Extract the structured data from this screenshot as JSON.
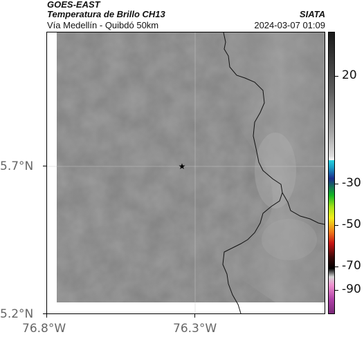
{
  "header": {
    "satellite": "GOES-EAST",
    "product": "Temperatura de Brillo CH13",
    "region": "Vía Medellín - Quibdó 50km",
    "org": "SIATA",
    "datetime": "2024-03-07 01:09"
  },
  "axes": {
    "lat_ticks": [
      "5.7°N",
      "5.2°N"
    ],
    "lon_ticks": [
      "76.8°W",
      "76.3°W"
    ]
  },
  "colorbar": {
    "labels": [
      "20",
      "-30",
      "-50",
      "-70",
      "-90"
    ]
  },
  "map": {
    "marker_icon": "star-icon",
    "background_color": "#8a8a8a"
  }
}
